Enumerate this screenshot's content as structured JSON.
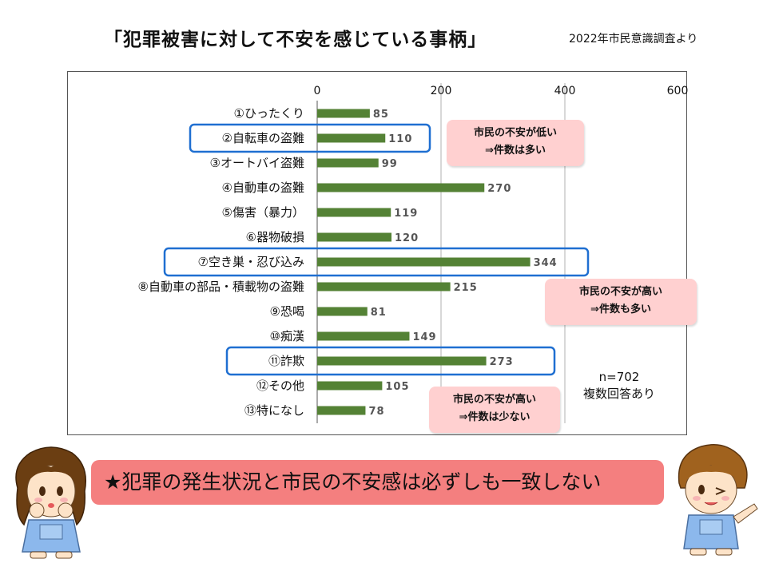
{
  "title": "「犯罪被害に対して不安を感じている事柄」",
  "source": "2022年市民意識調査より",
  "chart_data": {
    "type": "bar",
    "orientation": "horizontal",
    "categories": [
      "①ひったくり",
      "②自転車の盗難",
      "③オートバイ盗難",
      "④自動車の盗難",
      "⑤傷害（暴力）",
      "⑥器物破損",
      "⑦空き巣・忍び込み",
      "⑧自動車の部品・積載物の盗難",
      "⑨恐喝",
      "⑩痴漢",
      "⑪詐欺",
      "⑫その他",
      "⑬特になし"
    ],
    "values": [
      85,
      110,
      99,
      270,
      119,
      120,
      344,
      215,
      81,
      149,
      273,
      105,
      78
    ],
    "xlim": [
      0,
      600
    ],
    "xticks": [
      "0",
      "200",
      "400",
      "600"
    ],
    "grid": true,
    "bar_color": "#548235",
    "highlighted": [
      "②自転車の盗難",
      "⑦空き巣・忍び込み",
      "⑪詐欺"
    ],
    "highlight_color": "#1f6fd1"
  },
  "callouts": [
    {
      "line1": "市民の不安が低い",
      "line2": "⇒件数は多い"
    },
    {
      "line1": "市民の不安が高い",
      "line2": "⇒件数も多い"
    },
    {
      "line1": "市民の不安が高い",
      "line2": "⇒件数は少ない"
    }
  ],
  "note": {
    "line1": "n=702",
    "line2": "複数回答あり"
  },
  "conclusion": "★犯罪の発生状況と市民の不安感は必ずしも一致しない",
  "colors": {
    "callout_bg": "#ffd0d0",
    "conclusion_bg": "#f47f7f"
  }
}
